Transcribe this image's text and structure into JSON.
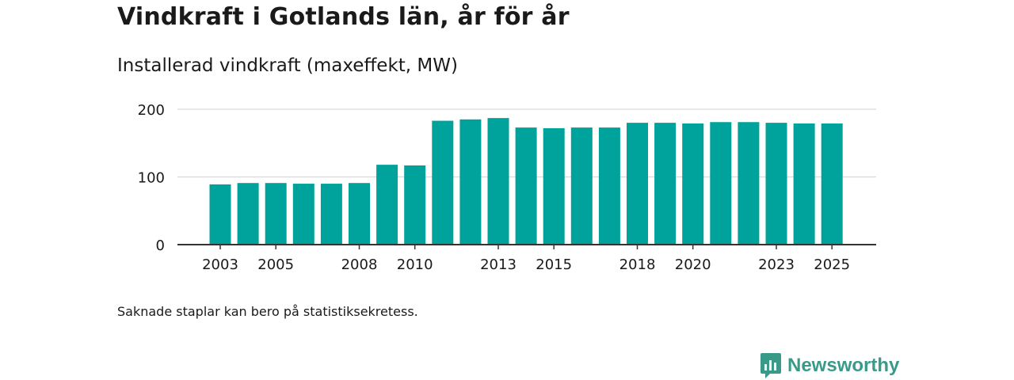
{
  "header": {
    "title": "Vindkraft i Gotlands län, år för år",
    "subtitle": "Installerad vindkraft (maxeffekt, MW)"
  },
  "footer": {
    "note": "Saknade staplar kan bero på statistiksekretess.",
    "brand": "Newsworthy"
  },
  "colors": {
    "bar": "#00a39b",
    "grid": "#d9d9d9",
    "axis": "#333333",
    "brand": "#3a9a8a"
  },
  "chart_data": {
    "type": "bar",
    "title": "Vindkraft i Gotlands län, år för år",
    "subtitle": "Installerad vindkraft (maxeffekt, MW)",
    "xlabel": "",
    "ylabel": "Installerad vindkraft (maxeffekt, MW)",
    "ylim": [
      0,
      200
    ],
    "yticks": [
      0,
      100,
      200
    ],
    "grid": true,
    "categories": [
      "2003",
      "2004",
      "2005",
      "2006",
      "2007",
      "2008",
      "2009",
      "2010",
      "2011",
      "2012",
      "2013",
      "2014",
      "2015",
      "2016",
      "2017",
      "2018",
      "2019",
      "2020",
      "2021",
      "2022",
      "2023",
      "2024",
      "2025"
    ],
    "xtick_labels": [
      "2003",
      "2005",
      "2008",
      "2010",
      "2013",
      "2015",
      "2018",
      "2020",
      "2023",
      "2025"
    ],
    "values": [
      89,
      91,
      91,
      90,
      90,
      91,
      118,
      117,
      183,
      185,
      187,
      173,
      172,
      173,
      173,
      180,
      180,
      179,
      181,
      181,
      180,
      179,
      179
    ]
  }
}
